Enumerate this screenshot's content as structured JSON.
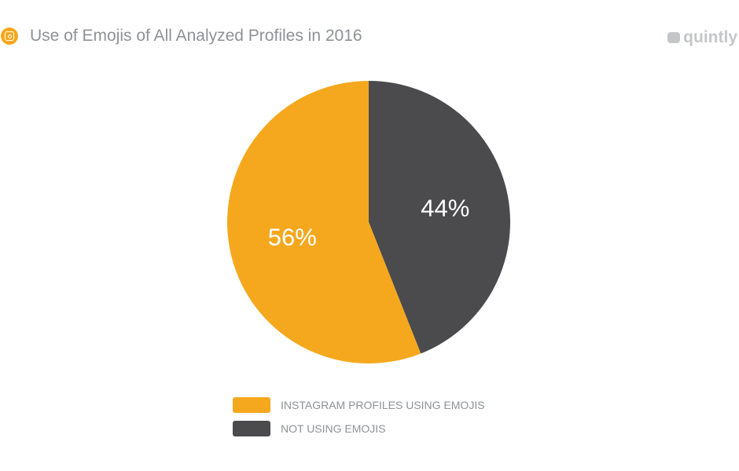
{
  "header": {
    "title": "Use of Emojis of All Analyzed Profiles in 2016",
    "logo": "quintly",
    "icon": "instagram-icon"
  },
  "chart_data": {
    "type": "pie",
    "title": "Use of Emojis of All Analyzed Profiles in 2016",
    "slices": [
      {
        "label": "NOT USING EMOJIS",
        "value": 44,
        "display": "44%",
        "color": "#4b4b4d"
      },
      {
        "label": "INSTAGRAM PROFILES USING EMOJIS",
        "value": 56,
        "display": "56%",
        "color": "#f5a81e"
      }
    ],
    "legend": [
      {
        "label": "INSTAGRAM PROFILES USING EMOJIS",
        "color": "#f5a81e"
      },
      {
        "label": "NOT USING EMOJIS",
        "color": "#4b4b4d"
      }
    ],
    "legend_position": "bottom"
  }
}
